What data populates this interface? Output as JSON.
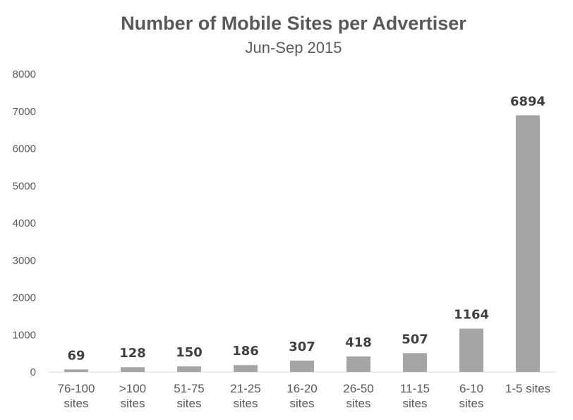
{
  "chart_data": {
    "type": "bar",
    "title": "Number of Mobile Sites per Advertiser",
    "subtitle": "Jun-Sep 2015",
    "categories": [
      [
        "76-100",
        "sites"
      ],
      [
        ">100",
        "sites"
      ],
      [
        "51-75",
        "sites"
      ],
      [
        "21-25",
        "sites"
      ],
      [
        "16-20",
        "sites"
      ],
      [
        "26-50",
        "sites"
      ],
      [
        "11-15",
        "sites"
      ],
      [
        "6-10",
        "sites"
      ],
      [
        "1-5 sites"
      ]
    ],
    "values": [
      69,
      128,
      150,
      186,
      307,
      418,
      507,
      1164,
      6894
    ],
    "data_labels": [
      "69",
      "128",
      "150",
      "186",
      "307",
      "418",
      "507",
      "1164",
      "6894"
    ],
    "ylim": [
      0,
      8000
    ],
    "yticks": [
      "0",
      "1000",
      "2000",
      "3000",
      "4000",
      "5000",
      "6000",
      "7000",
      "8000"
    ],
    "grid": false,
    "legend": "none",
    "colors": {
      "bar": "#a5a5a5",
      "text": "#595959",
      "label": "#404040"
    }
  }
}
